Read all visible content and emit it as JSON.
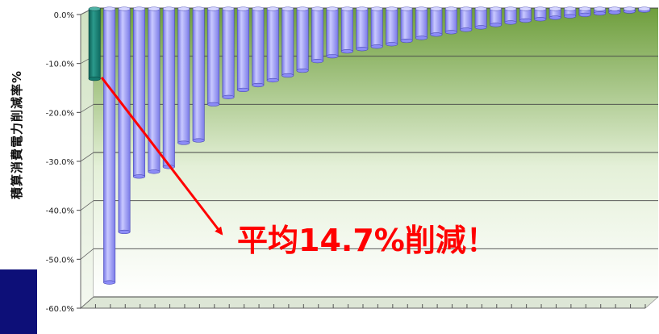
{
  "chart_data": {
    "type": "bar",
    "ylabel": "積算消費電力削減率%",
    "y_ticks": [
      "0.0%",
      "-10.0%",
      "-20.0%",
      "-30.0%",
      "-40.0%",
      "-50.0%",
      "-60.0%"
    ],
    "ylim": [
      -60,
      0
    ],
    "values": [
      -14.7,
      -57,
      -46.5,
      -35,
      -34,
      -33,
      -28,
      -27.5,
      -20,
      -18.5,
      -17,
      -16,
      -15,
      -14,
      -13,
      -11,
      -10,
      -9,
      -8.5,
      -8,
      -7.5,
      -6.8,
      -6.2,
      -5.5,
      -5,
      -4.5,
      -4,
      -3.5,
      -3,
      -2.6,
      -2.3,
      -2,
      -1.7,
      -1.4,
      -1.1,
      -0.9,
      -0.7,
      -0.5
    ],
    "highlight_index": 0,
    "colors": {
      "bar": "#8c8cf6",
      "highlight_bar": "#157a6e",
      "annotation": "#ff0000",
      "wall_top": "#6e9e3c",
      "wall_bottom": "#ffffff",
      "side_block": "#0d0f78"
    },
    "grid": true,
    "annotation": "平均14.7%削減！"
  }
}
